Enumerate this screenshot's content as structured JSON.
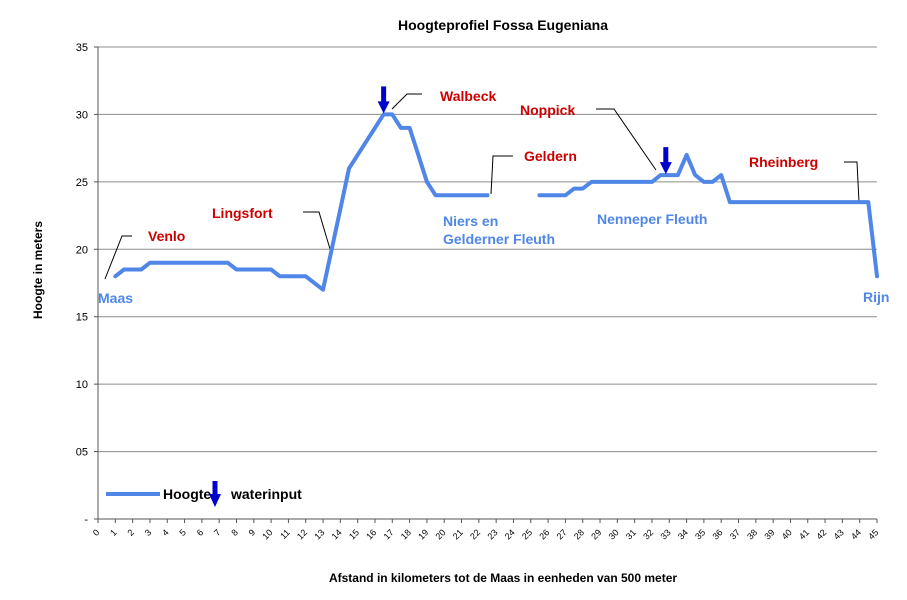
{
  "chart_data": {
    "type": "line",
    "title": "Hoogteprofiel Fossa Eugeniana",
    "xlabel": "Afstand in kilometers tot de Maas in eenheden van 500 meter",
    "ylabel": "Hoogte in meters",
    "xlim": [
      0,
      45
    ],
    "ylim": [
      0,
      35
    ],
    "x_ticks": [
      "0",
      "1",
      "2",
      "3",
      "4",
      "5",
      "6",
      "7",
      "8",
      "9",
      "10",
      "11",
      "12",
      "13",
      "14",
      "15",
      "16",
      "17",
      "18",
      "19",
      "20",
      "21",
      "22",
      "23",
      "24",
      "25",
      "26",
      "27",
      "28",
      "29",
      "30",
      "31",
      "32",
      "33",
      "34",
      "35",
      "36",
      "37",
      "38",
      "39",
      "40",
      "41",
      "42",
      "43",
      "44",
      "45"
    ],
    "y_ticks": [
      {
        "value": 0,
        "label": "-"
      },
      {
        "value": 5,
        "label": "05"
      },
      {
        "value": 10,
        "label": "10"
      },
      {
        "value": 15,
        "label": "15"
      },
      {
        "value": 20,
        "label": "20"
      },
      {
        "value": 25,
        "label": "25"
      },
      {
        "value": 30,
        "label": "30"
      },
      {
        "value": 35,
        "label": "35"
      }
    ],
    "grid": true,
    "legend_position": "bottom-left",
    "series": [
      {
        "name": "Hoogte",
        "color": "#4f86e8",
        "segments": [
          [
            [
              1,
              18
            ],
            [
              1.5,
              18.5
            ],
            [
              2.5,
              18.5
            ],
            [
              3,
              19
            ],
            [
              7.5,
              19
            ],
            [
              8,
              18.5
            ],
            [
              10,
              18.5
            ],
            [
              10.5,
              18
            ],
            [
              12,
              18
            ],
            [
              13,
              17
            ],
            [
              13.5,
              20
            ],
            [
              14,
              23
            ],
            [
              14.5,
              26
            ],
            [
              15.5,
              28
            ],
            [
              16.5,
              30
            ],
            [
              17,
              30
            ],
            [
              17.5,
              29
            ],
            [
              18,
              29
            ],
            [
              18.5,
              27
            ],
            [
              19,
              25
            ],
            [
              19.5,
              24
            ],
            [
              22.5,
              24
            ]
          ],
          [
            [
              25.5,
              24
            ],
            [
              27,
              24
            ],
            [
              27.5,
              24.5
            ],
            [
              28,
              24.5
            ],
            [
              28.5,
              25
            ],
            [
              32,
              25
            ],
            [
              32.5,
              25.5
            ],
            [
              33.5,
              25.5
            ],
            [
              34,
              27
            ],
            [
              34.5,
              25.5
            ],
            [
              35,
              25
            ],
            [
              35.5,
              25
            ],
            [
              36,
              25.5
            ],
            [
              36.5,
              23.5
            ],
            [
              44.5,
              23.5
            ],
            [
              45,
              18
            ]
          ]
        ]
      }
    ],
    "waterinput_markers": [
      {
        "x": 16.5,
        "y": 30
      },
      {
        "x": 32.8,
        "y": 25.5
      }
    ],
    "legend": [
      {
        "label": "Hoogte",
        "type": "line",
        "color": "#4f86e8"
      },
      {
        "label": "waterinput",
        "type": "arrow",
        "color": "#0000cc"
      }
    ],
    "annotations": [
      {
        "text": "Maas",
        "color": "blue",
        "x": 1,
        "y": 18
      },
      {
        "text": "Venlo",
        "color": "red",
        "x": 3.5,
        "y": 19
      },
      {
        "text": "Lingsfort",
        "color": "red",
        "x": 13.5,
        "y": 20
      },
      {
        "text": "Walbeck",
        "color": "red",
        "x": 17,
        "y": 30
      },
      {
        "text": "Niers en",
        "color": "blue"
      },
      {
        "text": "Gelderner Fleuth",
        "color": "blue"
      },
      {
        "text": "Geldern",
        "color": "red",
        "x": 23,
        "y": 24
      },
      {
        "text": "Noppick",
        "color": "red",
        "x": 33,
        "y": 25.5
      },
      {
        "text": "Nenneper Fleuth",
        "color": "blue"
      },
      {
        "text": "Rheinberg",
        "color": "red",
        "x": 44.5,
        "y": 23.5
      },
      {
        "text": "Rijn",
        "color": "blue",
        "x": 45,
        "y": 18
      }
    ]
  }
}
